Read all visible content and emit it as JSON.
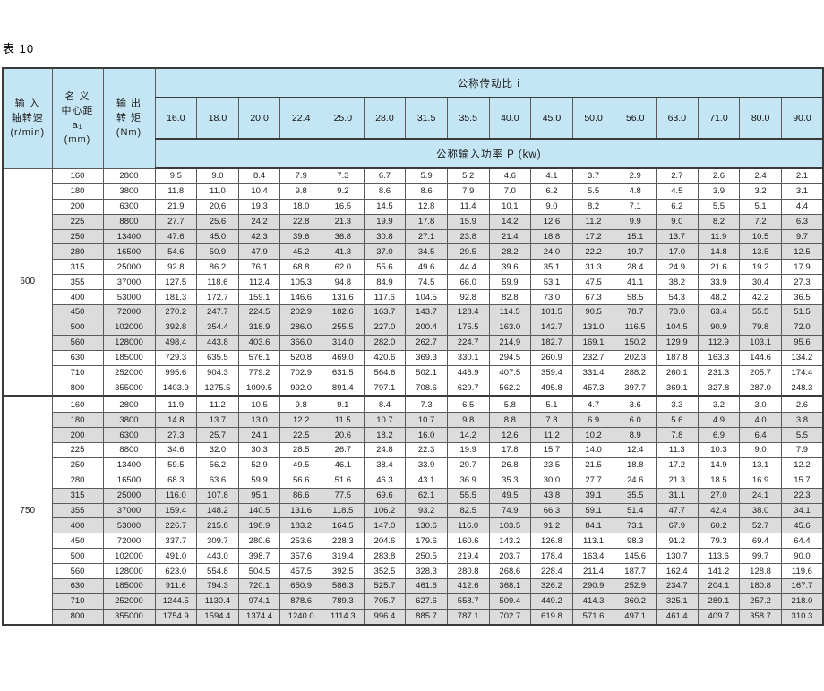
{
  "title": "表 10",
  "colors": {
    "header_bg": "#c4e5f3",
    "stripe": "#dcdcdc",
    "row_bg": "#ffffff",
    "border": "#3a3a3a",
    "text": "#1c1c1c"
  },
  "table": {
    "header": {
      "col_speed_lines": [
        "输 入",
        "轴转速",
        "(r/min)"
      ],
      "col_center_lines": [
        "名 义",
        "中心距",
        "a₁",
        "(mm)"
      ],
      "col_torque_lines": [
        "输 出",
        "转 矩",
        "(Nm)"
      ],
      "ratio_title": "公称传动比 i",
      "ratios": [
        "16.0",
        "18.0",
        "20.0",
        "22.4",
        "25.0",
        "28.0",
        "31.5",
        "35.5",
        "40.0",
        "45.0",
        "50.0",
        "56.0",
        "63.0",
        "71.0",
        "80.0",
        "90.0"
      ],
      "power_title": "公称输入功率 P (kw)"
    },
    "groups": [
      {
        "speed": "600",
        "rows": [
          {
            "a": "160",
            "t": "2800",
            "shade": false,
            "v": [
              "9.5",
              "9.0",
              "8.4",
              "7.9",
              "7.3",
              "6.7",
              "5.9",
              "5.2",
              "4.6",
              "4.1",
              "3.7",
              "2.9",
              "2.7",
              "2.6",
              "2.4",
              "2.1"
            ]
          },
          {
            "a": "180",
            "t": "3800",
            "shade": false,
            "v": [
              "11.8",
              "11.0",
              "10.4",
              "9.8",
              "9.2",
              "8.6",
              "8.6",
              "7.9",
              "7.0",
              "6.2",
              "5.5",
              "4.8",
              "4.5",
              "3.9",
              "3.2",
              "3.1"
            ]
          },
          {
            "a": "200",
            "t": "6300",
            "shade": false,
            "v": [
              "21.9",
              "20.6",
              "19.3",
              "18.0",
              "16.5",
              "14.5",
              "12.8",
              "11.4",
              "10.1",
              "9.0",
              "8.2",
              "7.1",
              "6.2",
              "5.5",
              "5.1",
              "4.4"
            ]
          },
          {
            "a": "225",
            "t": "8800",
            "shade": true,
            "v": [
              "27.7",
              "25.6",
              "24.2",
              "22.8",
              "21.3",
              "19.9",
              "17.8",
              "15.9",
              "14.2",
              "12.6",
              "11.2",
              "9.9",
              "9.0",
              "8.2",
              "7.2",
              "6.3"
            ]
          },
          {
            "a": "250",
            "t": "13400",
            "shade": true,
            "v": [
              "47.6",
              "45.0",
              "42.3",
              "39.6",
              "36.8",
              "30.8",
              "27.1",
              "23.8",
              "21.4",
              "18.8",
              "17.2",
              "15.1",
              "13.7",
              "11.9",
              "10.5",
              "9.7"
            ]
          },
          {
            "a": "280",
            "t": "16500",
            "shade": true,
            "v": [
              "54.6",
              "50.9",
              "47.9",
              "45.2",
              "41.3",
              "37.0",
              "34.5",
              "29.5",
              "28.2",
              "24.0",
              "22.2",
              "19.7",
              "17.0",
              "14.8",
              "13.5",
              "12.5"
            ]
          },
          {
            "a": "315",
            "t": "25000",
            "shade": false,
            "v": [
              "92.8",
              "86.2",
              "76.1",
              "68.8",
              "62.0",
              "55.6",
              "49.6",
              "44.4",
              "39.6",
              "35.1",
              "31.3",
              "28.4",
              "24.9",
              "21.6",
              "19.2",
              "17.9"
            ]
          },
          {
            "a": "355",
            "t": "37000",
            "shade": false,
            "v": [
              "127.5",
              "118.6",
              "112.4",
              "105.3",
              "94.8",
              "84.9",
              "74.5",
              "66.0",
              "59.9",
              "53.1",
              "47.5",
              "41.1",
              "38.2",
              "33.9",
              "30.4",
              "27.3"
            ]
          },
          {
            "a": "400",
            "t": "53000",
            "shade": false,
            "v": [
              "181.3",
              "172.7",
              "159.1",
              "146.6",
              "131.6",
              "117.6",
              "104.5",
              "92.8",
              "82.8",
              "73.0",
              "67.3",
              "58.5",
              "54.3",
              "48.2",
              "42.2",
              "36.5"
            ]
          },
          {
            "a": "450",
            "t": "72000",
            "shade": true,
            "v": [
              "270.2",
              "247.7",
              "224.5",
              "202.9",
              "182.6",
              "163.7",
              "143.7",
              "128.4",
              "114.5",
              "101.5",
              "90.5",
              "78.7",
              "73.0",
              "63.4",
              "55.5",
              "51.5"
            ]
          },
          {
            "a": "500",
            "t": "102000",
            "shade": true,
            "v": [
              "392.8",
              "354.4",
              "318.9",
              "286.0",
              "255.5",
              "227.0",
              "200.4",
              "175.5",
              "163.0",
              "142.7",
              "131.0",
              "116.5",
              "104.5",
              "90.9",
              "79.8",
              "72.0"
            ]
          },
          {
            "a": "560",
            "t": "128000",
            "shade": true,
            "v": [
              "498.4",
              "443.8",
              "403.6",
              "366.0",
              "314.0",
              "282.0",
              "262.7",
              "224.7",
              "214.9",
              "182.7",
              "169.1",
              "150.2",
              "129.9",
              "112.9",
              "103.1",
              "95.6"
            ]
          },
          {
            "a": "630",
            "t": "185000",
            "shade": false,
            "v": [
              "729.3",
              "635.5",
              "576.1",
              "520.8",
              "469.0",
              "420.6",
              "369.3",
              "330.1",
              "294.5",
              "260.9",
              "232.7",
              "202.3",
              "187.8",
              "163.3",
              "144.6",
              "134.2"
            ]
          },
          {
            "a": "710",
            "t": "252000",
            "shade": false,
            "v": [
              "995.6",
              "904.3",
              "779.2",
              "702.9",
              "631.5",
              "564.6",
              "502.1",
              "446.9",
              "407.5",
              "359.4",
              "331.4",
              "288.2",
              "260.1",
              "231.3",
              "205.7",
              "174.4"
            ]
          },
          {
            "a": "800",
            "t": "355000",
            "shade": false,
            "v": [
              "1403.9",
              "1275.5",
              "1099.5",
              "992.0",
              "891.4",
              "797.1",
              "708.6",
              "629.7",
              "562.2",
              "495.8",
              "457.3",
              "397.7",
              "369.1",
              "327.8",
              "287.0",
              "248.3"
            ]
          }
        ]
      },
      {
        "speed": "750",
        "rows": [
          {
            "a": "160",
            "t": "2800",
            "shade": false,
            "v": [
              "11.9",
              "11.2",
              "10.5",
              "9.8",
              "9.1",
              "8.4",
              "7.3",
              "6.5",
              "5.8",
              "5.1",
              "4.7",
              "3.6",
              "3.3",
              "3.2",
              "3.0",
              "2.6"
            ]
          },
          {
            "a": "180",
            "t": "3800",
            "shade": true,
            "v": [
              "14.8",
              "13.7",
              "13.0",
              "12.2",
              "11.5",
              "10.7",
              "10.7",
              "9.8",
              "8.8",
              "7.8",
              "6.9",
              "6.0",
              "5.6",
              "4.9",
              "4.0",
              "3.8"
            ]
          },
          {
            "a": "200",
            "t": "6300",
            "shade": true,
            "v": [
              "27.3",
              "25.7",
              "24.1",
              "22.5",
              "20.6",
              "18.2",
              "16.0",
              "14.2",
              "12.6",
              "11.2",
              "10.2",
              "8.9",
              "7.8",
              "6.9",
              "6.4",
              "5.5"
            ]
          },
          {
            "a": "225",
            "t": "8800",
            "shade": false,
            "v": [
              "34.6",
              "32.0",
              "30.3",
              "28.5",
              "26.7",
              "24.8",
              "22.3",
              "19.9",
              "17.8",
              "15.7",
              "14.0",
              "12.4",
              "11.3",
              "10.3",
              "9.0",
              "7.9"
            ]
          },
          {
            "a": "250",
            "t": "13400",
            "shade": false,
            "v": [
              "59.5",
              "56.2",
              "52.9",
              "49.5",
              "46.1",
              "38.4",
              "33.9",
              "29.7",
              "26.8",
              "23.5",
              "21.5",
              "18.8",
              "17.2",
              "14.9",
              "13.1",
              "12.2"
            ]
          },
          {
            "a": "280",
            "t": "16500",
            "shade": false,
            "v": [
              "68.3",
              "63.6",
              "59.9",
              "56.6",
              "51.6",
              "46.3",
              "43.1",
              "36.9",
              "35.3",
              "30.0",
              "27.7",
              "24.6",
              "21.3",
              "18.5",
              "16.9",
              "15.7"
            ]
          },
          {
            "a": "315",
            "t": "25000",
            "shade": true,
            "v": [
              "116.0",
              "107.8",
              "95.1",
              "86.6",
              "77.5",
              "69.6",
              "62.1",
              "55.5",
              "49.5",
              "43.8",
              "39.1",
              "35.5",
              "31.1",
              "27.0",
              "24.1",
              "22.3"
            ]
          },
          {
            "a": "355",
            "t": "37000",
            "shade": true,
            "v": [
              "159.4",
              "148.2",
              "140.5",
              "131.6",
              "118.5",
              "106.2",
              "93.2",
              "82.5",
              "74.9",
              "66.3",
              "59.1",
              "51.4",
              "47.7",
              "42.4",
              "38.0",
              "34.1"
            ]
          },
          {
            "a": "400",
            "t": "53000",
            "shade": true,
            "v": [
              "226.7",
              "215.8",
              "198.9",
              "183.2",
              "164.5",
              "147.0",
              "130.6",
              "116.0",
              "103.5",
              "91.2",
              "84.1",
              "73.1",
              "67.9",
              "60.2",
              "52.7",
              "45.6"
            ]
          },
          {
            "a": "450",
            "t": "72000",
            "shade": false,
            "v": [
              "337.7",
              "309.7",
              "280.6",
              "253.6",
              "228.3",
              "204.6",
              "179.6",
              "160.6",
              "143.2",
              "126.8",
              "113.1",
              "98.3",
              "91.2",
              "79.3",
              "69.4",
              "64.4"
            ]
          },
          {
            "a": "500",
            "t": "102000",
            "shade": false,
            "v": [
              "491.0",
              "443.0",
              "398.7",
              "357.6",
              "319.4",
              "283.8",
              "250.5",
              "219.4",
              "203.7",
              "178.4",
              "163.4",
              "145.6",
              "130.7",
              "113.6",
              "99.7",
              "90.0"
            ]
          },
          {
            "a": "560",
            "t": "128000",
            "shade": false,
            "v": [
              "623.0",
              "554.8",
              "504.5",
              "457.5",
              "392.5",
              "352.5",
              "328.3",
              "280.8",
              "268.6",
              "228.4",
              "211.4",
              "187.7",
              "162.4",
              "141.2",
              "128.8",
              "119.6"
            ]
          },
          {
            "a": "630",
            "t": "185000",
            "shade": true,
            "v": [
              "911.6",
              "794.3",
              "720.1",
              "650.9",
              "586.3",
              "525.7",
              "461.6",
              "412.6",
              "368.1",
              "326.2",
              "290.9",
              "252.9",
              "234.7",
              "204.1",
              "180.8",
              "167.7"
            ]
          },
          {
            "a": "710",
            "t": "252000",
            "shade": true,
            "v": [
              "1244.5",
              "1130.4",
              "974.1",
              "878.6",
              "789.3",
              "705.7",
              "627.6",
              "558.7",
              "509.4",
              "449.2",
              "414.3",
              "360.2",
              "325.1",
              "289.1",
              "257.2",
              "218.0"
            ]
          },
          {
            "a": "800",
            "t": "355000",
            "shade": true,
            "v": [
              "1754.9",
              "1594.4",
              "1374.4",
              "1240.0",
              "1114.3",
              "996.4",
              "885.7",
              "787.1",
              "702.7",
              "619.8",
              "571.6",
              "497.1",
              "461.4",
              "409.7",
              "358.7",
              "310.3"
            ]
          }
        ]
      }
    ]
  }
}
